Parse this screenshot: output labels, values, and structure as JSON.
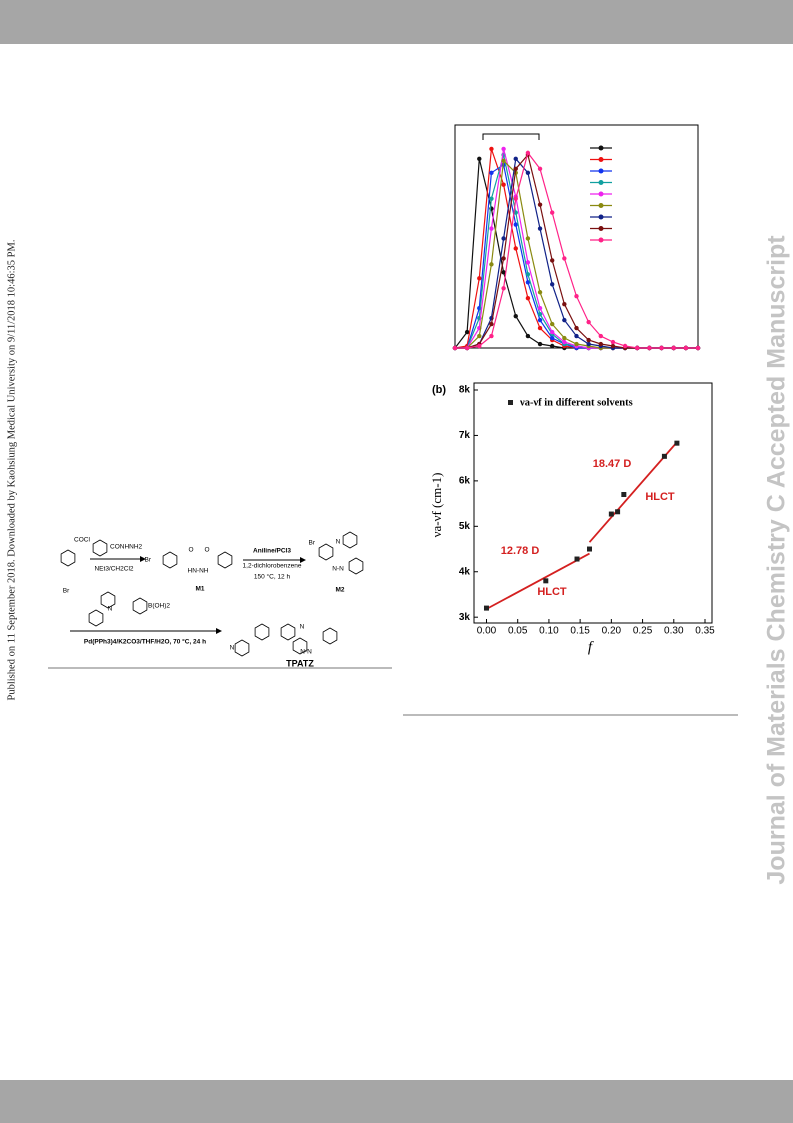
{
  "sidebar": {
    "left_text": "Published on 11 September 2018. Downloaded by Kaohsiung Medical University on 9/11/2018 10:46:35 PM.",
    "right_watermark": "Journal of Materials Chemistry C Accepted Manuscript"
  },
  "scheme": {
    "labels": [
      "COCl",
      "Br",
      "CONHNH2",
      "NEt3/CH2Cl2",
      "Br",
      "O",
      "O",
      "HN-NH",
      "M1",
      "Aniline/PCl3",
      "1,2-dichlorobenzene",
      "150 °C, 12 h",
      "Br",
      "N",
      "N-N",
      "M2",
      "N",
      "B(OH)2",
      "Pd(PPh3)4/K2CO3/THF/H2O, 70 °C, 24 h",
      "N",
      "N",
      "N-N",
      "TPATZ"
    ]
  },
  "figure_a": {
    "type": "line",
    "x": [
      0,
      0.05,
      0.1,
      0.15,
      0.2,
      0.25,
      0.3,
      0.35,
      0.4,
      0.45,
      0.5,
      0.55,
      0.6,
      0.65,
      0.7,
      0.75,
      0.8,
      0.85,
      0.9,
      0.95,
      1.0
    ],
    "xlim": [
      0,
      1
    ],
    "ylim": [
      0,
      1.12
    ],
    "series": [
      {
        "color": "#111111",
        "values": [
          0,
          0.08,
          0.95,
          0.7,
          0.38,
          0.16,
          0.06,
          0.02,
          0.01,
          0,
          0,
          0,
          0,
          0,
          0,
          0,
          0,
          0,
          0,
          0,
          0
        ]
      },
      {
        "color": "#ee1111",
        "values": [
          0,
          0.01,
          0.35,
          1.0,
          0.82,
          0.5,
          0.25,
          0.1,
          0.04,
          0.01,
          0,
          0,
          0,
          0,
          0,
          0,
          0,
          0,
          0,
          0,
          0
        ]
      },
      {
        "color": "#1133ee",
        "values": [
          0,
          0,
          0.2,
          0.88,
          0.92,
          0.62,
          0.33,
          0.14,
          0.05,
          0.02,
          0,
          0,
          0,
          0,
          0,
          0,
          0,
          0,
          0,
          0,
          0
        ]
      },
      {
        "color": "#11a0a0",
        "values": [
          0,
          0,
          0.15,
          0.75,
          0.97,
          0.68,
          0.37,
          0.17,
          0.07,
          0.02,
          0.01,
          0,
          0,
          0,
          0,
          0,
          0,
          0,
          0,
          0,
          0
        ]
      },
      {
        "color": "#ee22ee",
        "values": [
          0,
          0,
          0.1,
          0.6,
          1.0,
          0.76,
          0.43,
          0.2,
          0.08,
          0.03,
          0.01,
          0,
          0,
          0,
          0,
          0,
          0,
          0,
          0,
          0,
          0
        ]
      },
      {
        "color": "#8a8a10",
        "values": [
          0,
          0,
          0.06,
          0.42,
          0.94,
          0.88,
          0.55,
          0.28,
          0.12,
          0.05,
          0.02,
          0.01,
          0,
          0,
          0,
          0,
          0,
          0,
          0,
          0,
          0
        ]
      },
      {
        "color": "#112288",
        "values": [
          0,
          0,
          0.02,
          0.15,
          0.55,
          0.95,
          0.88,
          0.6,
          0.32,
          0.14,
          0.06,
          0.02,
          0.01,
          0,
          0,
          0,
          0,
          0,
          0,
          0,
          0
        ]
      },
      {
        "color": "#7a1010",
        "values": [
          0,
          0,
          0.02,
          0.12,
          0.45,
          0.9,
          0.97,
          0.72,
          0.44,
          0.22,
          0.1,
          0.04,
          0.02,
          0.01,
          0,
          0,
          0,
          0,
          0,
          0,
          0
        ]
      },
      {
        "color": "#ff2288",
        "values": [
          0,
          0,
          0.01,
          0.06,
          0.3,
          0.75,
          0.98,
          0.9,
          0.68,
          0.45,
          0.26,
          0.13,
          0.06,
          0.03,
          0.01,
          0,
          0,
          0,
          0,
          0,
          0
        ]
      }
    ]
  },
  "figure_b": {
    "type": "scatter",
    "panel_label": "(b)",
    "legend": "νa-νf  in different solvents",
    "x_label": "f",
    "y_label": "νa-νf (cm-1)",
    "x": [
      0.0,
      0.095,
      0.145,
      0.165,
      0.2,
      0.21,
      0.22,
      0.285,
      0.305
    ],
    "values": [
      3200,
      3800,
      4280,
      4500,
      5270,
      5320,
      5700,
      6540,
      6830
    ],
    "xlim": [
      -0.02,
      0.35
    ],
    "ylim": [
      2850,
      8000
    ],
    "xticks": [
      {
        "value": 0,
        "label": "0.00"
      },
      {
        "value": 0.05,
        "label": "0.05"
      },
      {
        "value": 0.1,
        "label": "0.10"
      },
      {
        "value": 0.15,
        "label": "0.15"
      },
      {
        "value": 0.2,
        "label": "0.20"
      },
      {
        "value": 0.25,
        "label": "0.25"
      },
      {
        "value": 0.3,
        "label": "0.30"
      },
      {
        "value": 0.35,
        "label": "0.35"
      }
    ],
    "yticks": [
      {
        "value": 3000,
        "label": "3k"
      },
      {
        "value": 4000,
        "label": "4k"
      },
      {
        "value": 5000,
        "label": "5k"
      },
      {
        "value": 6000,
        "label": "6k"
      },
      {
        "value": 7000,
        "label": "7k"
      },
      {
        "value": 8000,
        "label": "8k"
      }
    ],
    "fit_lines": [
      {
        "x": [
          0,
          0.165
        ],
        "values": [
          3180,
          4400
        ]
      },
      {
        "x": [
          0.165,
          0.305
        ],
        "values": [
          4650,
          6850
        ]
      }
    ],
    "annotations": [
      "12.78 D",
      "HLCT",
      "18.47 D",
      "HLCT"
    ],
    "marker_color": "#222222",
    "line_color": "#d42020"
  }
}
